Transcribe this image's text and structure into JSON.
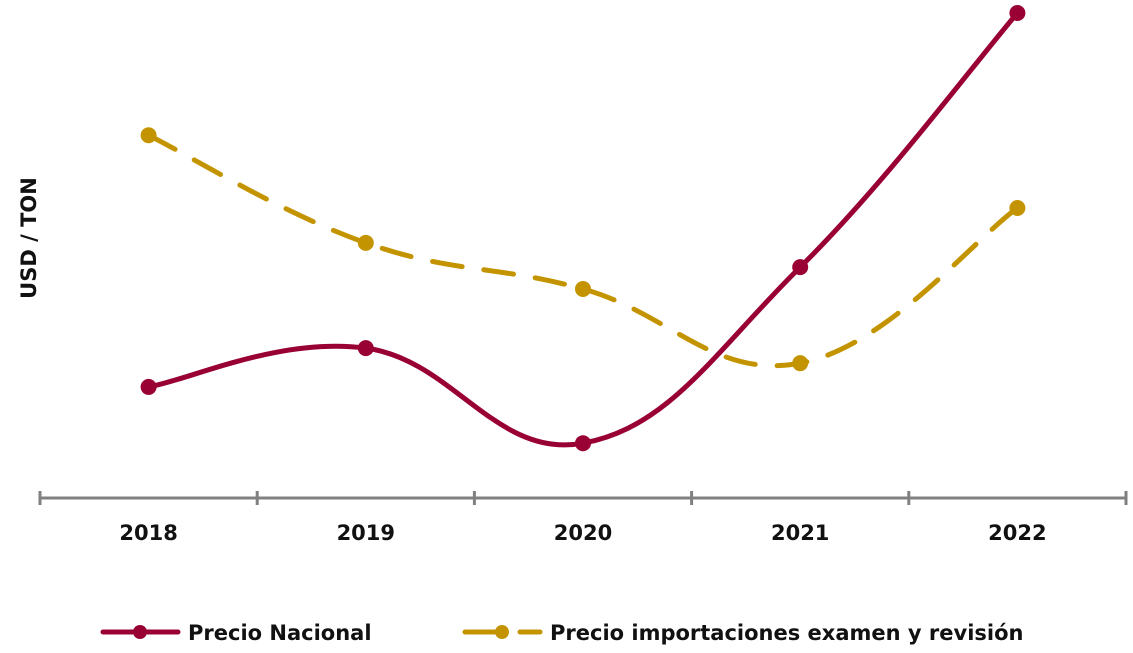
{
  "chart_data": {
    "type": "line",
    "title": "",
    "xlabel": "",
    "ylabel": "USD / TON",
    "categories": [
      "2018",
      "2019",
      "2020",
      "2021",
      "2022"
    ],
    "value_note": "No y-axis values shown; values are relative index (0 = axis baseline, 100 = highest point)",
    "ylim": [
      0,
      100
    ],
    "grid": false,
    "legend_position": "bottom",
    "series": [
      {
        "name": "Precio Nacional",
        "color": "#990033",
        "style": "solid-smooth",
        "values": [
          22.9,
          30.9,
          11.3,
          47.6,
          100
        ]
      },
      {
        "name": "Precio importaciones examen y revisión",
        "color": "#C49400",
        "style": "dashed-smooth",
        "values": [
          74.8,
          52.6,
          43.1,
          27.8,
          59.8
        ]
      }
    ]
  },
  "axis_color": "#808080"
}
